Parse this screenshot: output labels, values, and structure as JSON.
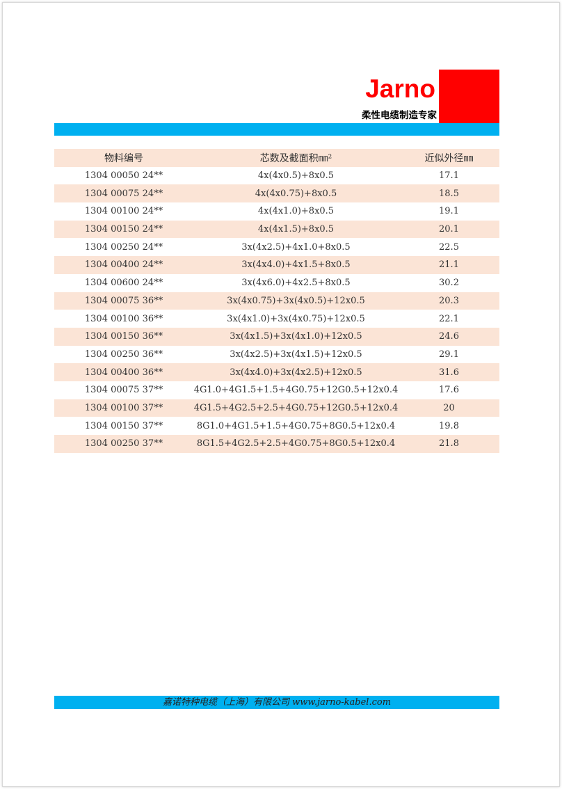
{
  "header": {
    "brand": "Jarno",
    "slogan": "柔性电缆制造专家",
    "colors": {
      "brand_red": "#ff0000",
      "bar_blue": "#00b0f0",
      "row_pink": "#fbe4d6"
    }
  },
  "table": {
    "columns": [
      "物料编号",
      "芯数及截面积㎜²",
      "近似外径㎜"
    ],
    "rows": [
      [
        "1304 00050 24**",
        "4x(4x0.5)+8x0.5",
        "17.1"
      ],
      [
        "1304 00075 24**",
        "4x(4x0.75)+8x0.5",
        "18.5"
      ],
      [
        "1304 00100 24**",
        "4x(4x1.0)+8x0.5",
        "19.1"
      ],
      [
        "1304 00150 24**",
        "4x(4x1.5)+8x0.5",
        "20.1"
      ],
      [
        "1304 00250 24**",
        "3x(4x2.5)+4x1.0+8x0.5",
        "22.5"
      ],
      [
        "1304 00400 24**",
        "3x(4x4.0)+4x1.5+8x0.5",
        "21.1"
      ],
      [
        "1304 00600 24**",
        "3x(4x6.0)+4x2.5+8x0.5",
        "30.2"
      ],
      [
        "1304 00075 36**",
        "3x(4x0.75)+3x(4x0.5)+12x0.5",
        "20.3"
      ],
      [
        "1304 00100 36**",
        "3x(4x1.0)+3x(4x0.75)+12x0.5",
        "22.1"
      ],
      [
        "1304 00150 36**",
        "3x(4x1.5)+3x(4x1.0)+12x0.5",
        "24.6"
      ],
      [
        "1304 00250 36**",
        "3x(4x2.5)+3x(4x1.5)+12x0.5",
        "29.1"
      ],
      [
        "1304 00400 36**",
        "3x(4x4.0)+3x(4x2.5)+12x0.5",
        "31.6"
      ],
      [
        "1304 00075 37**",
        "4G1.0+4G1.5+1.5+4G0.75+12G0.5+12x0.4",
        "17.6"
      ],
      [
        "1304 00100 37**",
        "4G1.5+4G2.5+2.5+4G0.75+12G0.5+12x0.4",
        "20"
      ],
      [
        "1304 00150 37**",
        "8G1.0+4G1.5+1.5+4G0.75+8G0.5+12x0.4",
        "19.8"
      ],
      [
        "1304 00250 37**",
        "8G1.5+4G2.5+2.5+4G0.75+8G0.5+12x0.4",
        "21.8"
      ]
    ]
  },
  "footer": {
    "text": "嘉诺特种电缆（上海）有限公司 www.jarno-kabel.com"
  }
}
